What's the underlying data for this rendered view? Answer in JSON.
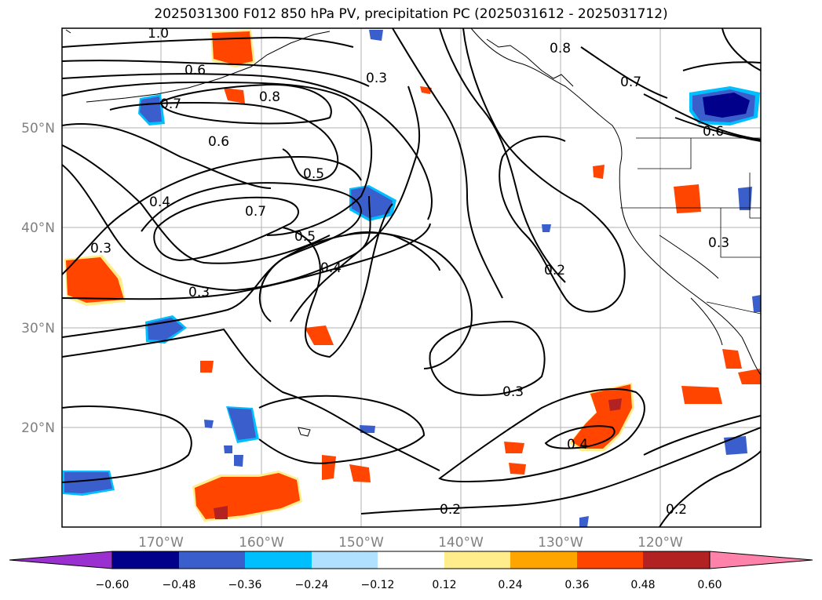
{
  "title": "2025031300 F012 850 hPa PV, precipitation PC (2025031612 - 2025031712)",
  "lon_ticks": [
    "170°W",
    "160°W",
    "150°W",
    "140°W",
    "130°W",
    "120°W"
  ],
  "lat_ticks": [
    "50°N",
    "40°N",
    "30°N",
    "20°N"
  ],
  "colorbar": {
    "levels": [
      "−0.60",
      "−0.48",
      "−0.36",
      "−0.24",
      "−0.12",
      "0.12",
      "0.24",
      "0.36",
      "0.48",
      "0.60"
    ],
    "colors": [
      "#9b30d0",
      "#00008b",
      "#3a5fcd",
      "#00bfff",
      "#b0e2ff",
      "#ffffff",
      "#ffec8b",
      "#ffa500",
      "#ff4500",
      "#b22222",
      "#ff82ab"
    ]
  },
  "contour_labels": [
    "1.0",
    "0.6",
    "0.7",
    "0.8",
    "0.6",
    "0.5",
    "0.4",
    "0.7",
    "0.5",
    "0.3",
    "0.4",
    "0.3",
    "0.3",
    "0.8",
    "0.7",
    "0.6",
    "0.2",
    "0.3",
    "0.4",
    "0.2",
    "0.2",
    "0.3"
  ]
}
